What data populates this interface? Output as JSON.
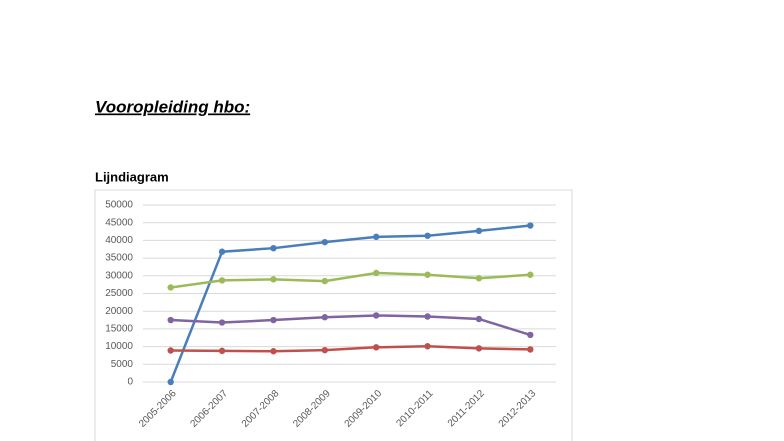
{
  "heading": "Vooropleiding hbo:",
  "chart_data": {
    "type": "line",
    "title": "Lijndiagram",
    "categories": [
      "2005-2006",
      "2006-2007",
      "2007-2008",
      "2008-2009",
      "2009-2010",
      "2010-2011",
      "2011-2012",
      "2012-2013"
    ],
    "series": [
      {
        "color": "#4a7ebb",
        "values": [
          0,
          36800,
          37800,
          39500,
          41000,
          41300,
          42700,
          44200
        ]
      },
      {
        "color": "#9bbb59",
        "values": [
          26700,
          28700,
          29000,
          28500,
          30800,
          30300,
          29300,
          30300
        ]
      },
      {
        "color": "#8064a2",
        "values": [
          17500,
          16800,
          17500,
          18300,
          18800,
          18500,
          17800,
          13300
        ]
      },
      {
        "color": "#c0504d",
        "values": [
          8900,
          8800,
          8700,
          9000,
          9800,
          10100,
          9500,
          9200
        ]
      }
    ],
    "ylim": [
      0,
      50000
    ],
    "yticks": [
      0,
      5000,
      10000,
      15000,
      20000,
      25000,
      30000,
      35000,
      40000,
      45000,
      50000
    ],
    "grid": true
  }
}
